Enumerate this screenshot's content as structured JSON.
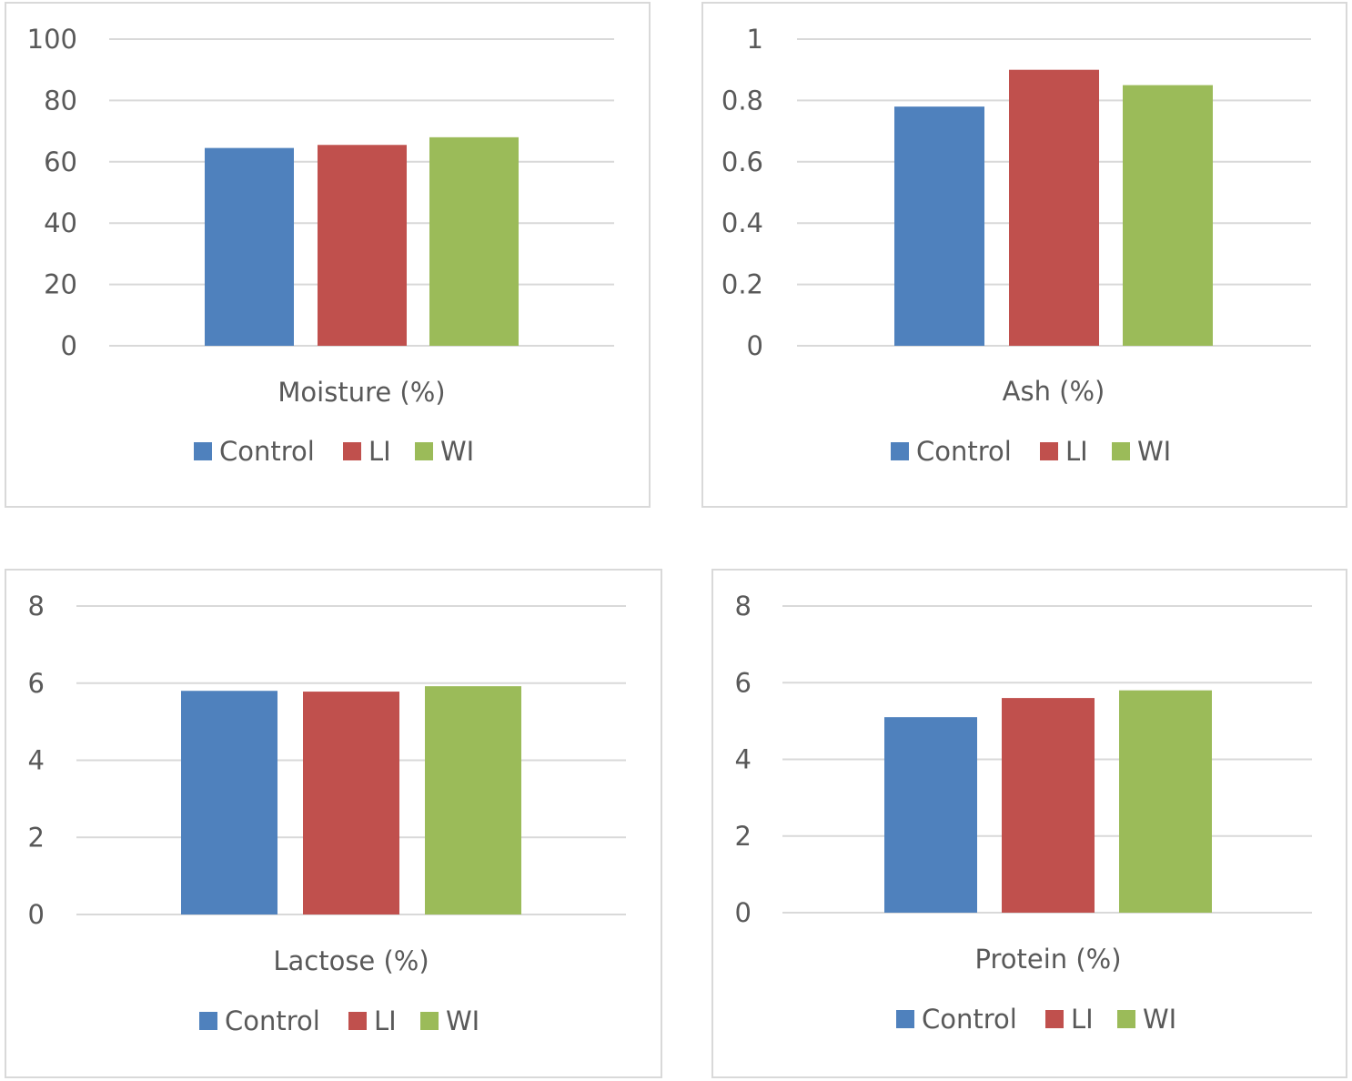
{
  "chart_data": [
    {
      "type": "bar",
      "categories": [
        "Moisture (%)"
      ],
      "series": [
        {
          "name": "Control",
          "values": [
            64.5
          ],
          "color": "#4f81bd"
        },
        {
          "name": "LI",
          "values": [
            65.5
          ],
          "color": "#c0504d"
        },
        {
          "name": "WI",
          "values": [
            68
          ],
          "color": "#9bbb59"
        }
      ],
      "yticks": [
        "100",
        "80",
        "60",
        "40",
        "20",
        "0"
      ],
      "ylim": [
        0,
        100
      ],
      "grid": true,
      "legend": "bottom"
    },
    {
      "type": "bar",
      "categories": [
        "Ash (%)"
      ],
      "series": [
        {
          "name": "Control",
          "values": [
            0.78
          ],
          "color": "#4f81bd"
        },
        {
          "name": "LI",
          "values": [
            0.9
          ],
          "color": "#c0504d"
        },
        {
          "name": "WI",
          "values": [
            0.85
          ],
          "color": "#9bbb59"
        }
      ],
      "yticks": [
        "1",
        "0.8",
        "0.6",
        "0.4",
        "0.2",
        "0"
      ],
      "ylim": [
        0,
        1
      ],
      "grid": true,
      "legend": "bottom"
    },
    {
      "type": "bar",
      "categories": [
        "Lactose (%)"
      ],
      "series": [
        {
          "name": "Control",
          "values": [
            5.8
          ],
          "color": "#4f81bd"
        },
        {
          "name": "LI",
          "values": [
            5.78
          ],
          "color": "#c0504d"
        },
        {
          "name": "WI",
          "values": [
            5.92
          ],
          "color": "#9bbb59"
        }
      ],
      "yticks": [
        "8",
        "6",
        "4",
        "2",
        "0"
      ],
      "ylim": [
        0,
        8
      ],
      "grid": true,
      "legend": "bottom"
    },
    {
      "type": "bar",
      "categories": [
        "Protein (%)"
      ],
      "series": [
        {
          "name": "Control",
          "values": [
            5.1
          ],
          "color": "#4f81bd"
        },
        {
          "name": "LI",
          "values": [
            5.6
          ],
          "color": "#c0504d"
        },
        {
          "name": "WI",
          "values": [
            5.8
          ],
          "color": "#9bbb59"
        }
      ],
      "yticks": [
        "8",
        "6",
        "4",
        "2",
        "0"
      ],
      "ylim": [
        0,
        8
      ],
      "grid": true,
      "legend": "bottom"
    }
  ],
  "colors": {
    "gridline": "#d9d9d9",
    "text": "#595959",
    "border": "#d9d9d9"
  }
}
